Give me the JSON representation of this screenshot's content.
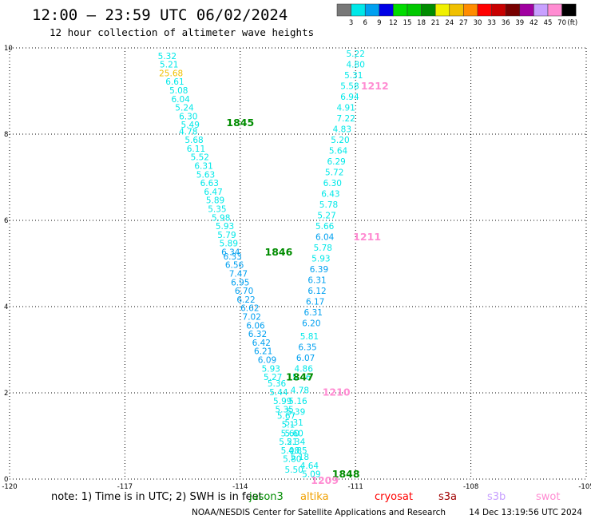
{
  "title": "12:00 – 23:59 UTC 06/02/2024",
  "subtitle": "12 hour collection of altimeter wave heights",
  "colorbar": {
    "labels": [
      "3",
      "6",
      "9",
      "12",
      "15",
      "18",
      "21",
      "24",
      "27",
      "30",
      "33",
      "36",
      "39",
      "42",
      "45",
      "70"
    ],
    "unit": "(ft)",
    "colors": [
      "#787878",
      "#00e8e8",
      "#00a0f0",
      "#0000e6",
      "#00dc00",
      "#00c800",
      "#008c00",
      "#f0f000",
      "#f0c000",
      "#ff8c00",
      "#ff0000",
      "#c80000",
      "#780000",
      "#a000a0",
      "#c8a0ff",
      "#ff8cd2",
      "#000000"
    ]
  },
  "chart_data": {
    "type": "scatter",
    "xlabel": "",
    "ylabel": "",
    "xlim": [
      -120,
      -105
    ],
    "ylim": [
      0,
      10
    ],
    "x_ticks": [
      "-120",
      "-117",
      "-114",
      "-111",
      "-108",
      "-105"
    ],
    "y_ticks": [
      "0",
      "2",
      "4",
      "6",
      "8",
      "10"
    ],
    "grid": true,
    "series": [
      {
        "track": "descending",
        "points": [
          {
            "lon": -115.9,
            "lat": 9.8,
            "value": "5.32",
            "color": "#00e8e8"
          },
          {
            "lon": -115.85,
            "lat": 9.6,
            "value": "5.21",
            "color": "#00e8e8"
          },
          {
            "lon": -115.8,
            "lat": 9.4,
            "value": "25.68",
            "color": "#f0c000"
          },
          {
            "lon": -115.7,
            "lat": 9.2,
            "value": "6.61",
            "color": "#00e8e8"
          },
          {
            "lon": -115.6,
            "lat": 9.0,
            "value": "5.08",
            "color": "#00e8e8"
          },
          {
            "lon": -115.55,
            "lat": 8.8,
            "value": "6.04",
            "color": "#00e8e8"
          },
          {
            "lon": -115.45,
            "lat": 8.6,
            "value": "5.24",
            "color": "#00e8e8"
          },
          {
            "lon": -115.35,
            "lat": 8.4,
            "value": "6.30",
            "color": "#00e8e8"
          },
          {
            "lon": -115.3,
            "lat": 8.2,
            "value": "5.49",
            "color": "#00e8e8"
          },
          {
            "lon": -115.35,
            "lat": 8.05,
            "value": "4.78",
            "color": "#00e8e8"
          },
          {
            "lon": -115.2,
            "lat": 7.85,
            "value": "5.68",
            "color": "#00e8e8"
          },
          {
            "lon": -115.15,
            "lat": 7.65,
            "value": "6.11",
            "color": "#00e8e8"
          },
          {
            "lon": -115.05,
            "lat": 7.45,
            "value": "5.52",
            "color": "#00e8e8"
          },
          {
            "lon": -114.95,
            "lat": 7.25,
            "value": "6.31",
            "color": "#00e8e8"
          },
          {
            "lon": -114.9,
            "lat": 7.05,
            "value": "5.63",
            "color": "#00e8e8"
          },
          {
            "lon": -114.8,
            "lat": 6.85,
            "value": "6.63",
            "color": "#00e8e8"
          },
          {
            "lon": -114.7,
            "lat": 6.65,
            "value": "6.47",
            "color": "#00e8e8"
          },
          {
            "lon": -114.65,
            "lat": 6.45,
            "value": "5.89",
            "color": "#00e8e8"
          },
          {
            "lon": -114.6,
            "lat": 6.25,
            "value": "5.35",
            "color": "#00e8e8"
          },
          {
            "lon": -114.5,
            "lat": 6.05,
            "value": "5.98",
            "color": "#00e8e8"
          },
          {
            "lon": -114.4,
            "lat": 5.85,
            "value": "5.93",
            "color": "#00e8e8"
          },
          {
            "lon": -114.35,
            "lat": 5.65,
            "value": "5.79",
            "color": "#00e8e8"
          },
          {
            "lon": -114.3,
            "lat": 5.45,
            "value": "5.89",
            "color": "#00e8e8"
          },
          {
            "lon": -114.25,
            "lat": 5.25,
            "value": "6.34",
            "color": "#00a0f0"
          },
          {
            "lon": -114.2,
            "lat": 5.15,
            "value": "6.33",
            "color": "#00a0f0"
          },
          {
            "lon": -114.15,
            "lat": 4.95,
            "value": "6.56",
            "color": "#00a0f0"
          },
          {
            "lon": -114.05,
            "lat": 4.75,
            "value": "7.47",
            "color": "#00a0f0"
          },
          {
            "lon": -114.0,
            "lat": 4.55,
            "value": "6.95",
            "color": "#00a0f0"
          },
          {
            "lon": -113.9,
            "lat": 4.35,
            "value": "6.70",
            "color": "#00a0f0"
          },
          {
            "lon": -113.85,
            "lat": 4.15,
            "value": "6.22",
            "color": "#00a0f0"
          },
          {
            "lon": -113.75,
            "lat": 3.95,
            "value": "6.62",
            "color": "#00a0f0"
          },
          {
            "lon": -113.7,
            "lat": 3.75,
            "value": "7.02",
            "color": "#00a0f0"
          },
          {
            "lon": -113.6,
            "lat": 3.55,
            "value": "6.06",
            "color": "#00a0f0"
          },
          {
            "lon": -113.55,
            "lat": 3.35,
            "value": "6.32",
            "color": "#00a0f0"
          },
          {
            "lon": -113.45,
            "lat": 3.15,
            "value": "6.42",
            "color": "#00a0f0"
          },
          {
            "lon": -113.4,
            "lat": 2.95,
            "value": "6.21",
            "color": "#00a0f0"
          },
          {
            "lon": -113.3,
            "lat": 2.75,
            "value": "6.09",
            "color": "#00a0f0"
          },
          {
            "lon": -113.2,
            "lat": 2.55,
            "value": "5.93",
            "color": "#00e8e8"
          },
          {
            "lon": -113.15,
            "lat": 2.35,
            "value": "5.27",
            "color": "#00e8e8"
          },
          {
            "lon": -113.05,
            "lat": 2.2,
            "value": "5.36",
            "color": "#00e8e8"
          },
          {
            "lon": -113.0,
            "lat": 2.0,
            "value": "5.44",
            "color": "#00e8e8"
          },
          {
            "lon": -112.9,
            "lat": 1.8,
            "value": "5.99",
            "color": "#00e8e8"
          },
          {
            "lon": -112.85,
            "lat": 1.6,
            "value": "5.35",
            "color": "#00e8e8"
          },
          {
            "lon": -112.8,
            "lat": 1.45,
            "value": "5.67",
            "color": "#00e8e8"
          },
          {
            "lon": -112.75,
            "lat": 1.25,
            "value": "5.1",
            "color": "#00e8e8"
          },
          {
            "lon": -112.7,
            "lat": 1.05,
            "value": "5.60",
            "color": "#00e8e8"
          },
          {
            "lon": -112.75,
            "lat": 0.85,
            "value": "5.21",
            "color": "#00e8e8"
          },
          {
            "lon": -112.7,
            "lat": 0.65,
            "value": "5.08",
            "color": "#00e8e8"
          },
          {
            "lon": -112.65,
            "lat": 0.45,
            "value": "5.80",
            "color": "#00e8e8"
          },
          {
            "lon": -112.6,
            "lat": 0.2,
            "value": "5.50",
            "color": "#00e8e8"
          }
        ]
      },
      {
        "track": "ascending",
        "points": [
          {
            "lon": -111.0,
            "lat": 9.85,
            "value": "5.22",
            "color": "#00e8e8"
          },
          {
            "lon": -111.0,
            "lat": 9.6,
            "value": "4.80",
            "color": "#00e8e8"
          },
          {
            "lon": -111.05,
            "lat": 9.35,
            "value": "5.31",
            "color": "#00e8e8"
          },
          {
            "lon": -111.15,
            "lat": 9.1,
            "value": "5.58",
            "color": "#00e8e8"
          },
          {
            "lon": -111.15,
            "lat": 8.85,
            "value": "6.94",
            "color": "#00e8e8"
          },
          {
            "lon": -111.25,
            "lat": 8.6,
            "value": "4.91",
            "color": "#00e8e8"
          },
          {
            "lon": -111.25,
            "lat": 8.35,
            "value": "7.22",
            "color": "#00e8e8"
          },
          {
            "lon": -111.35,
            "lat": 8.1,
            "value": "4.83",
            "color": "#00e8e8"
          },
          {
            "lon": -111.4,
            "lat": 7.85,
            "value": "5.20",
            "color": "#00e8e8"
          },
          {
            "lon": -111.45,
            "lat": 7.6,
            "value": "5.64",
            "color": "#00e8e8"
          },
          {
            "lon": -111.5,
            "lat": 7.35,
            "value": "6.29",
            "color": "#00e8e8"
          },
          {
            "lon": -111.55,
            "lat": 7.1,
            "value": "5.72",
            "color": "#00e8e8"
          },
          {
            "lon": -111.6,
            "lat": 6.85,
            "value": "6.30",
            "color": "#00e8e8"
          },
          {
            "lon": -111.65,
            "lat": 6.6,
            "value": "6.43",
            "color": "#00e8e8"
          },
          {
            "lon": -111.7,
            "lat": 6.35,
            "value": "5.78",
            "color": "#00e8e8"
          },
          {
            "lon": -111.75,
            "lat": 6.1,
            "value": "5.27",
            "color": "#00e8e8"
          },
          {
            "lon": -111.8,
            "lat": 5.85,
            "value": "5.66",
            "color": "#00e8e8"
          },
          {
            "lon": -111.8,
            "lat": 5.6,
            "value": "6.04",
            "color": "#00a0f0"
          },
          {
            "lon": -111.85,
            "lat": 5.35,
            "value": "5.78",
            "color": "#00e8e8"
          },
          {
            "lon": -111.9,
            "lat": 5.1,
            "value": "5.93",
            "color": "#00e8e8"
          },
          {
            "lon": -111.95,
            "lat": 4.85,
            "value": "6.39",
            "color": "#00a0f0"
          },
          {
            "lon": -112.0,
            "lat": 4.6,
            "value": "6.31",
            "color": "#00a0f0"
          },
          {
            "lon": -112.0,
            "lat": 4.35,
            "value": "6.12",
            "color": "#00a0f0"
          },
          {
            "lon": -112.05,
            "lat": 4.1,
            "value": "6.17",
            "color": "#00a0f0"
          },
          {
            "lon": -112.1,
            "lat": 3.85,
            "value": "6.31",
            "color": "#00a0f0"
          },
          {
            "lon": -112.15,
            "lat": 3.6,
            "value": "6.20",
            "color": "#00a0f0"
          },
          {
            "lon": -112.2,
            "lat": 3.3,
            "value": "5.81",
            "color": "#00e8e8"
          },
          {
            "lon": -112.25,
            "lat": 3.05,
            "value": "6.35",
            "color": "#00a0f0"
          },
          {
            "lon": -112.3,
            "lat": 2.8,
            "value": "6.07",
            "color": "#00a0f0"
          },
          {
            "lon": -112.35,
            "lat": 2.55,
            "value": "4.86",
            "color": "#00e8e8"
          },
          {
            "lon": -112.4,
            "lat": 2.35,
            "value": "5.46",
            "color": "#00e8e8"
          },
          {
            "lon": -112.45,
            "lat": 2.05,
            "value": "4.78",
            "color": "#00e8e8"
          },
          {
            "lon": -112.5,
            "lat": 1.8,
            "value": "5.16",
            "color": "#00e8e8"
          },
          {
            "lon": -112.55,
            "lat": 1.55,
            "value": "5.39",
            "color": "#00e8e8"
          },
          {
            "lon": -112.6,
            "lat": 1.3,
            "value": "5.31",
            "color": "#00e8e8"
          },
          {
            "lon": -112.6,
            "lat": 1.05,
            "value": "5.60",
            "color": "#00e8e8"
          },
          {
            "lon": -112.55,
            "lat": 0.85,
            "value": "5.34",
            "color": "#00e8e8"
          },
          {
            "lon": -112.5,
            "lat": 0.65,
            "value": "4.85",
            "color": "#00e8e8"
          },
          {
            "lon": -112.45,
            "lat": 0.5,
            "value": "5.18",
            "color": "#00e8e8"
          },
          {
            "lon": -112.2,
            "lat": 0.3,
            "value": "4.64",
            "color": "#00e8e8"
          },
          {
            "lon": -112.15,
            "lat": 0.1,
            "value": "5.09",
            "color": "#00e8e8"
          }
        ]
      }
    ],
    "annotations": [
      {
        "lon": -114.0,
        "lat": 8.25,
        "text": "1845",
        "color": "#008c00",
        "kind": "pass"
      },
      {
        "lon": -113.0,
        "lat": 5.25,
        "text": "1846",
        "color": "#008c00",
        "kind": "pass"
      },
      {
        "lon": -112.45,
        "lat": 2.35,
        "text": "1847",
        "color": "#008c00",
        "kind": "pass"
      },
      {
        "lon": -111.25,
        "lat": 0.1,
        "text": "1848",
        "color": "#008c00",
        "kind": "pass"
      },
      {
        "lon": -110.5,
        "lat": 9.1,
        "text": "1212",
        "color": "#ff8cd2",
        "kind": "pass"
      },
      {
        "lon": -110.7,
        "lat": 5.6,
        "text": "1211",
        "color": "#ff8cd2",
        "kind": "pass"
      },
      {
        "lon": -111.5,
        "lat": 2.0,
        "text": "1210",
        "color": "#ff8cd2",
        "kind": "pass"
      },
      {
        "lon": -111.8,
        "lat": -0.05,
        "text": "1209",
        "color": "#ff8cd2",
        "kind": "pass"
      }
    ]
  },
  "footer": {
    "note": "note:  1) Time is in UTC; 2) SWH is in feet",
    "satellites": [
      {
        "name": "jason3",
        "color": "#008c00"
      },
      {
        "name": "altika",
        "color": "#f0a000"
      },
      {
        "name": "cryosat",
        "color": "#ff0000"
      },
      {
        "name": "s3a",
        "color": "#a00000"
      },
      {
        "name": "s3b",
        "color": "#c8a0ff"
      },
      {
        "name": "swot",
        "color": "#ff8cd2"
      }
    ],
    "credit": "NOAA/NESDIS Center for Satellite Applications and Research",
    "timestamp": "14 Dec 13:19:56 UTC 2024"
  }
}
